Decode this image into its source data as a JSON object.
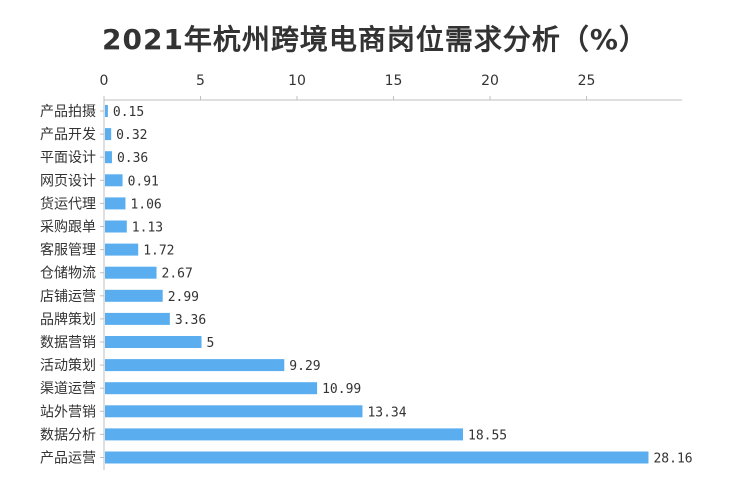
{
  "chart_data": {
    "type": "bar",
    "orientation": "horizontal",
    "title": "2021年杭州跨境电商岗位需求分析（%）",
    "categories": [
      "产品拍摄",
      "产品开发",
      "平面设计",
      "网页设计",
      "货运代理",
      "采购跟单",
      "客服管理",
      "仓储物流",
      "店铺运营",
      "品牌策划",
      "数据营销",
      "活动策划",
      "渠道运营",
      "站外营销",
      "数据分析",
      "产品运营"
    ],
    "values": [
      0.15,
      0.32,
      0.36,
      0.91,
      1.06,
      1.13,
      1.72,
      2.67,
      2.99,
      3.36,
      5,
      9.29,
      10.99,
      13.34,
      18.55,
      28.16
    ],
    "value_labels": [
      "0.15",
      "0.32",
      "0.36",
      "0.91",
      "1.06",
      "1.13",
      "1.72",
      "2.67",
      "2.99",
      "3.36",
      "5",
      "9.29",
      "10.99",
      "13.34",
      "18.55",
      "28.16"
    ],
    "x_ticks": [
      "0",
      "5",
      "10",
      "15",
      "20",
      "25"
    ],
    "xlim": [
      0,
      30
    ],
    "xlabel": "",
    "ylabel": "",
    "axis_position": "top",
    "grid": false,
    "bar_color": "#5aaef0"
  }
}
